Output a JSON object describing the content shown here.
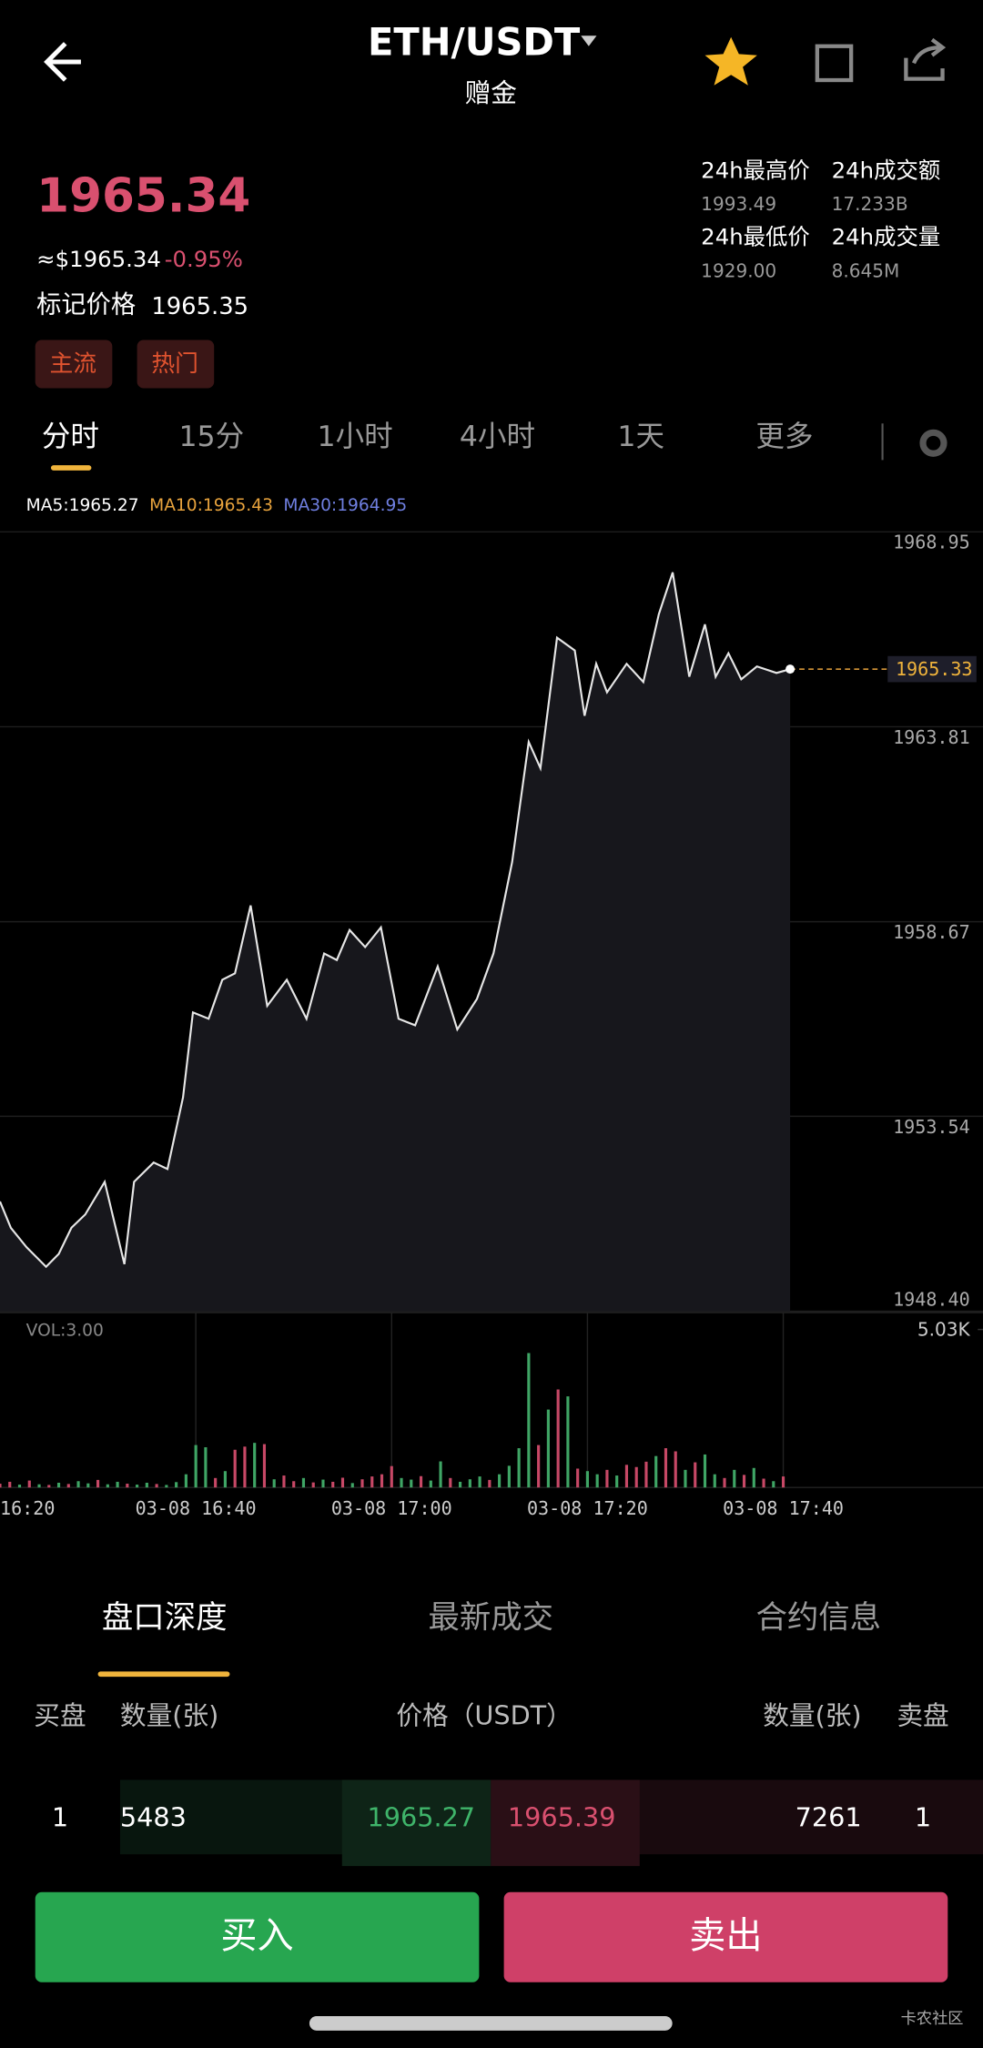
{
  "header": {
    "title": "ETH/USDT",
    "subtitle": "赠金"
  },
  "ticker": {
    "price": "1965.34",
    "usd": "≈$1965.34",
    "change": "-0.95%",
    "mark_label": "标记价格",
    "mark_value": "1965.35",
    "tags": [
      "主流",
      "热门"
    ],
    "stats": [
      {
        "label": "24h最高价",
        "value": "1993.49"
      },
      {
        "label": "24h成交额",
        "value": "17.233B"
      },
      {
        "label": "24h最低价",
        "value": "1929.00"
      },
      {
        "label": "24h成交量",
        "value": "8.645M"
      }
    ]
  },
  "intervals": [
    "分时",
    "15分",
    "1小时",
    "4小时",
    "1天",
    "更多"
  ],
  "chart_data": [
    {
      "type": "line",
      "annotations": [
        "MA5:1965.27",
        "MA10:1965.43",
        "MA30:1964.95"
      ],
      "color": "#e6e6e6",
      "fill": "#17171c",
      "grid": true,
      "x": [
        0,
        1.1,
        2.7,
        4.7,
        6,
        7.3,
        8.7,
        10.7,
        12.7,
        13.7,
        15.7,
        17.1,
        18.7,
        19.7,
        21.3,
        22.7,
        24,
        25.6,
        27.3,
        29.3,
        31.3,
        33.1,
        34.4,
        35.7,
        37.3,
        38.9,
        40.7,
        42.4,
        44.7,
        46.7,
        48.7,
        50.4,
        52.3,
        54,
        55.2,
        56.9,
        58.7,
        59.7,
        60.9,
        62,
        64,
        65.7,
        67.3,
        68.7,
        70.4,
        72,
        73.1,
        74.4,
        75.7,
        77.3,
        79.3,
        80.7
      ],
      "values": [
        1951.29,
        1950.6,
        1950.09,
        1949.57,
        1949.91,
        1950.6,
        1950.95,
        1951.81,
        1949.64,
        1951.81,
        1952.32,
        1952.15,
        1954.04,
        1956.28,
        1956.11,
        1957.14,
        1957.31,
        1959.1,
        1956.45,
        1957.14,
        1956.11,
        1957.83,
        1957.66,
        1958.45,
        1958.0,
        1958.52,
        1956.11,
        1955.94,
        1957.49,
        1955.83,
        1956.63,
        1957.83,
        1960.24,
        1963.41,
        1962.72,
        1966.16,
        1965.82,
        1964.1,
        1965.47,
        1964.72,
        1965.47,
        1964.99,
        1966.78,
        1967.88,
        1965.13,
        1966.51,
        1965.13,
        1965.75,
        1965.06,
        1965.4,
        1965.23,
        1965.33
      ],
      "xlim": [
        0,
        100.4
      ],
      "ylim": [
        1948.4,
        1968.95
      ],
      "yticks": [
        {
          "value": 1948.4,
          "label": "1948.40"
        },
        1953.54,
        1958.67,
        1963.81,
        1968.95
      ]
    },
    {
      "type": "bar",
      "title": "VOL:3.00",
      "x": [
        0,
        1,
        2,
        3,
        4,
        5,
        6,
        7,
        8,
        9,
        10,
        11,
        12,
        13,
        14,
        15,
        16,
        17,
        18,
        19,
        20,
        21,
        22,
        23,
        24,
        25,
        26,
        27,
        28,
        29,
        30,
        31,
        32,
        33,
        34,
        35,
        36,
        37,
        38,
        39,
        40,
        41,
        42,
        43,
        44,
        45,
        46,
        47,
        48,
        49,
        50,
        51,
        52,
        53,
        54,
        55,
        56,
        57,
        58,
        59,
        60,
        61,
        62,
        63,
        64,
        65,
        66,
        67,
        68,
        69,
        70,
        71,
        72,
        73,
        74,
        75,
        76,
        77,
        78,
        79,
        80
      ],
      "values": [
        120,
        180,
        90,
        220,
        100,
        80,
        150,
        110,
        200,
        130,
        240,
        100,
        180,
        120,
        90,
        150,
        110,
        80,
        170,
        420,
        1350,
        1280,
        300,
        520,
        1200,
        1300,
        1420,
        1380,
        260,
        380,
        200,
        300,
        160,
        250,
        180,
        310,
        140,
        260,
        350,
        420,
        680,
        300,
        250,
        360,
        220,
        830,
        300,
        180,
        260,
        350,
        240,
        420,
        690,
        1250,
        4280,
        1350,
        2480,
        3120,
        2900,
        600,
        520,
        420,
        560,
        380,
        720,
        650,
        820,
        1000,
        1250,
        1150,
        560,
        800,
        1050,
        420,
        300,
        560,
        400,
        620,
        280,
        200,
        350
      ],
      "colors": [
        "#c74866",
        "#c74866",
        "#3fa565",
        "#c74866",
        "#3fa565",
        "#c74866",
        "#3fa565",
        "#c74866",
        "#3fa565",
        "#3fa565",
        "#c74866",
        "#3fa565",
        "#3fa565",
        "#c74866",
        "#3fa565",
        "#3fa565",
        "#c74866",
        "#3fa565",
        "#3fa565",
        "#3fa565",
        "#3fa565",
        "#3fa565",
        "#c74866",
        "#3fa565",
        "#c74866",
        "#c74866",
        "#3fa565",
        "#c74866",
        "#3fa565",
        "#c74866",
        "#c74866",
        "#3fa565",
        "#c74866",
        "#3fa565",
        "#c74866",
        "#c74866",
        "#3fa565",
        "#c74866",
        "#c74866",
        "#c74866",
        "#c74866",
        "#3fa565",
        "#3fa565",
        "#c74866",
        "#3fa565",
        "#3fa565",
        "#c74866",
        "#3fa565",
        "#3fa565",
        "#3fa565",
        "#c74866",
        "#3fa565",
        "#3fa565",
        "#3fa565",
        "#3fa565",
        "#c74866",
        "#3fa565",
        "#c74866",
        "#3fa565",
        "#c74866",
        "#3fa565",
        "#3fa565",
        "#c74866",
        "#3fa565",
        "#c74866",
        "#c74866",
        "#c74866",
        "#3fa565",
        "#c74866",
        "#c74866",
        "#3fa565",
        "#c74866",
        "#3fa565",
        "#3fa565",
        "#c74866",
        "#3fa565",
        "#c74866",
        "#3fa565",
        "#c74866",
        "#3fa565",
        "#c74866"
      ],
      "xlim": [
        0,
        100.4
      ],
      "ylim": [
        0,
        5030
      ],
      "yticks": [
        {
          "value": 5030,
          "label": "5.03K"
        }
      ],
      "xticks": [
        {
          "value": 0,
          "label": "16:20"
        },
        {
          "value": 20,
          "label": "03-08 16:40"
        },
        {
          "value": 40,
          "label": "03-08 17:00"
        },
        {
          "value": 60,
          "label": "03-08 17:20"
        },
        {
          "value": 80,
          "label": "03-08 17:40"
        }
      ]
    }
  ],
  "panel_tabs": [
    "盘口深度",
    "最新成交",
    "合约信息"
  ],
  "order_book": {
    "columns": [
      "买盘",
      "数量(张)",
      "价格（USDT）",
      "数量(张)",
      "卖盘"
    ],
    "rows": [
      [
        "1",
        "5483",
        "1965.27",
        "1965.39",
        "7261",
        "1"
      ]
    ]
  },
  "buttons": {
    "buy": "买入",
    "sell": "卖出"
  },
  "watermark": "卡农社区"
}
